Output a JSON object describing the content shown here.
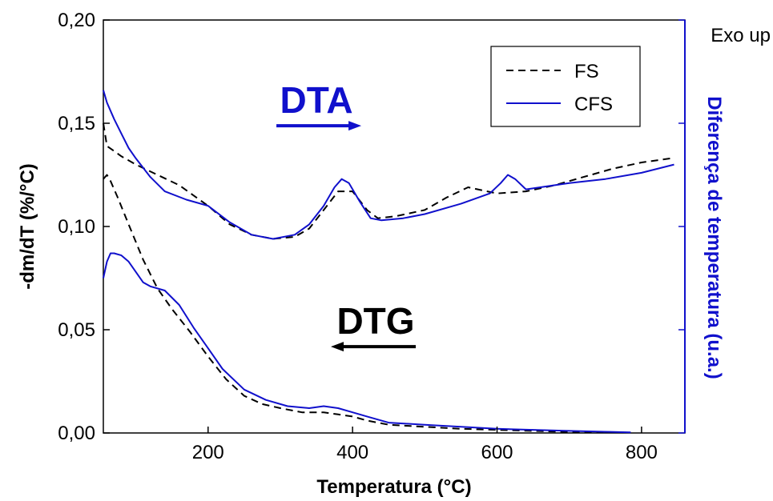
{
  "chart_data": {
    "type": "line",
    "xlabel": "Temperatura (°C)",
    "ylabel": "-dm/dT (%/°C)",
    "y2label": "Diferença de temperatura (u.a.)",
    "y2note": "Exo up",
    "xlim": [
      55,
      860
    ],
    "ylim": [
      0,
      0.2
    ],
    "y2lim": [
      0,
      0.2
    ],
    "xticks": [
      200,
      400,
      600,
      800
    ],
    "xtick_labels": [
      "200",
      "400",
      "600",
      "800"
    ],
    "yticks": [
      0,
      0.05,
      0.1,
      0.15,
      0.2
    ],
    "ytick_labels": [
      "0,00",
      "0,05",
      "0,10",
      "0,15",
      "0,20"
    ],
    "legend": {
      "placement": "top-right",
      "entries": [
        "FS",
        "CFS"
      ]
    },
    "colors": {
      "FS": "#000000",
      "CFS": "#1010cc",
      "right_axis": "#1010cc",
      "dta_label": "#1010cc",
      "dtg_label": "#000000"
    },
    "annotations": [
      {
        "text": "DTA",
        "x": 350,
        "y": 0.155,
        "arrow": "right",
        "color": "#1010cc"
      },
      {
        "text": "DTG",
        "x": 432,
        "y": 0.048,
        "arrow": "left",
        "color": "#000000"
      }
    ],
    "series": [
      {
        "name": "FS",
        "group": "DTA",
        "style": "dashed",
        "x": [
          55,
          60,
          80,
          100,
          130,
          160,
          200,
          230,
          260,
          290,
          320,
          340,
          360,
          380,
          400,
          420,
          435,
          460,
          500,
          530,
          560,
          600,
          640,
          680,
          720,
          760,
          800,
          840
        ],
        "y": [
          0.15,
          0.139,
          0.134,
          0.13,
          0.125,
          0.12,
          0.11,
          0.101,
          0.096,
          0.094,
          0.095,
          0.099,
          0.108,
          0.117,
          0.117,
          0.108,
          0.104,
          0.105,
          0.108,
          0.114,
          0.119,
          0.116,
          0.117,
          0.12,
          0.124,
          0.128,
          0.131,
          0.133
        ]
      },
      {
        "name": "CFS",
        "group": "DTA",
        "style": "solid",
        "x": [
          55,
          60,
          70,
          80,
          90,
          100,
          120,
          140,
          170,
          200,
          230,
          260,
          290,
          320,
          340,
          360,
          375,
          385,
          395,
          410,
          425,
          440,
          470,
          500,
          550,
          590,
          605,
          615,
          625,
          640,
          660,
          700,
          750,
          800,
          845
        ],
        "y": [
          0.166,
          0.16,
          0.152,
          0.145,
          0.138,
          0.133,
          0.124,
          0.117,
          0.113,
          0.11,
          0.102,
          0.096,
          0.094,
          0.096,
          0.101,
          0.11,
          0.119,
          0.123,
          0.121,
          0.112,
          0.104,
          0.103,
          0.104,
          0.106,
          0.111,
          0.116,
          0.121,
          0.125,
          0.123,
          0.118,
          0.119,
          0.121,
          0.123,
          0.126,
          0.13
        ]
      },
      {
        "name": "FS",
        "group": "DTG",
        "style": "dashed",
        "x": [
          55,
          60,
          65,
          75,
          90,
          110,
          130,
          150,
          175,
          200,
          225,
          250,
          275,
          300,
          330,
          360,
          380,
          400,
          420,
          450,
          500,
          550,
          600,
          650,
          700,
          750,
          785
        ],
        "y": [
          0.123,
          0.125,
          0.122,
          0.114,
          0.101,
          0.084,
          0.07,
          0.06,
          0.049,
          0.037,
          0.026,
          0.018,
          0.014,
          0.012,
          0.01,
          0.01,
          0.009,
          0.008,
          0.006,
          0.004,
          0.003,
          0.002,
          0.0015,
          0.001,
          0.0005,
          0.0003,
          0.0002
        ]
      },
      {
        "name": "CFS",
        "group": "DTG",
        "style": "solid",
        "x": [
          55,
          60,
          65,
          70,
          80,
          90,
          100,
          110,
          120,
          140,
          160,
          180,
          200,
          220,
          250,
          280,
          310,
          340,
          360,
          380,
          400,
          420,
          450,
          500,
          550,
          600,
          650,
          700,
          750,
          785
        ],
        "y": [
          0.075,
          0.083,
          0.087,
          0.087,
          0.086,
          0.083,
          0.078,
          0.073,
          0.071,
          0.069,
          0.062,
          0.051,
          0.041,
          0.031,
          0.021,
          0.016,
          0.013,
          0.012,
          0.013,
          0.012,
          0.01,
          0.008,
          0.005,
          0.004,
          0.003,
          0.002,
          0.0015,
          0.001,
          0.0006,
          0.0003
        ]
      }
    ]
  }
}
